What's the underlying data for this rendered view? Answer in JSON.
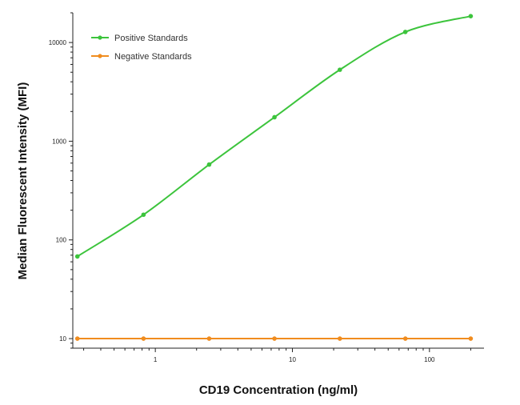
{
  "chart_data": {
    "type": "line",
    "xlabel": "CD19 Concentration (ng/ml)",
    "ylabel": "Median  Fluorescent Intensity  (MFI)",
    "x_scale": "log",
    "y_scale": "log",
    "xlim": [
      0.25,
      250
    ],
    "ylim": [
      8,
      20000
    ],
    "x_ticks": [
      1,
      10,
      100
    ],
    "x_tick_labels": [
      "1",
      "10",
      "100"
    ],
    "y_ticks": [
      10,
      100,
      1000,
      10000
    ],
    "y_tick_labels": [
      "10",
      "100",
      "1000",
      "10000"
    ],
    "grid": false,
    "legend_position": "top-left",
    "series": [
      {
        "name": "Positive Standards",
        "color": "#3cc43c",
        "x": [
          0.27,
          0.82,
          2.47,
          7.4,
          22.2,
          66.7,
          200
        ],
        "y": [
          68,
          180,
          580,
          1750,
          5300,
          12800,
          18500
        ]
      },
      {
        "name": "Negative Standards",
        "color": "#f08c1e",
        "x": [
          0.27,
          0.82,
          2.47,
          7.4,
          22.2,
          66.7,
          200
        ],
        "y": [
          10,
          10,
          10,
          10,
          10,
          10,
          10
        ]
      }
    ]
  }
}
